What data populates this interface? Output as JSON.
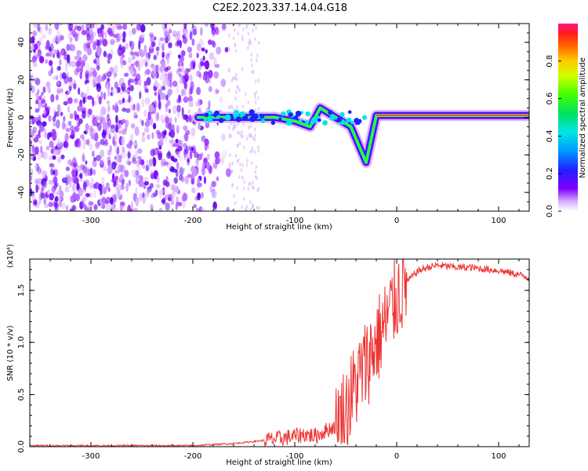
{
  "title": "C2E2.2023.337.14.04.G18",
  "chart_data": [
    {
      "type": "heatmap",
      "id": "spectrogram",
      "xlabel": "Height of straight line (km)",
      "ylabel": "Frequency (Hz)",
      "xlim": [
        -360,
        130
      ],
      "ylim": [
        -50,
        50
      ],
      "xticks": [
        -300,
        -200,
        -100,
        0,
        100
      ],
      "yticks": [
        -40,
        -20,
        0,
        20,
        40
      ],
      "colorbar": {
        "label": "Normalized spectral amplitude",
        "range": [
          0,
          1
        ],
        "ticks": [
          "0.0",
          "0.2",
          "0.4",
          "0.6",
          "0.8"
        ],
        "tick_values": [
          0.0,
          0.2,
          0.4,
          0.6,
          0.8
        ]
      },
      "features": [
        {
          "name": "noise-region",
          "x_range": [
            -360,
            -165
          ],
          "freq_range": [
            -50,
            50
          ]
        },
        {
          "name": "main-trace",
          "points": [
            [
              -195,
              0
            ],
            [
              -180,
              0
            ],
            [
              -150,
              0
            ],
            [
              -120,
              0
            ],
            [
              -100,
              -2
            ],
            [
              -85,
              -5
            ],
            [
              -75,
              5
            ],
            [
              -60,
              0
            ],
            [
              -45,
              -5
            ],
            [
              -30,
              -24
            ],
            [
              -20,
              1
            ],
            [
              0,
              1
            ],
            [
              50,
              1
            ],
            [
              130,
              1
            ]
          ]
        }
      ]
    },
    {
      "type": "line",
      "id": "snr",
      "xlabel": "Height of straight line (km)",
      "ylabel": "SNR (10 * v/v)",
      "scale_label": "(x10⁴)",
      "xlim": [
        -360,
        130
      ],
      "ylim": [
        0,
        1.8
      ],
      "xticks": [
        -300,
        -200,
        -100,
        0,
        100
      ],
      "yticks": [
        "0.0",
        "0.5",
        "1.0",
        "1.5"
      ],
      "ytick_values": [
        0.0,
        0.5,
        1.0,
        1.5
      ],
      "series": [
        {
          "name": "SNR",
          "color": "#ee3333",
          "x": [
            -360,
            -300,
            -250,
            -200,
            -180,
            -160,
            -140,
            -120,
            -100,
            -90,
            -80,
            -70,
            -60,
            -50,
            -40,
            -30,
            -20,
            -10,
            0,
            10,
            20,
            30,
            40,
            50,
            60,
            70,
            80,
            90,
            100,
            110,
            120,
            130
          ],
          "y": [
            0.01,
            0.01,
            0.01,
            0.01,
            0.02,
            0.03,
            0.05,
            0.07,
            0.1,
            0.12,
            0.1,
            0.15,
            0.2,
            0.35,
            0.6,
            0.8,
            1.0,
            1.2,
            1.45,
            1.58,
            1.68,
            1.72,
            1.74,
            1.73,
            1.72,
            1.72,
            1.71,
            1.7,
            1.69,
            1.67,
            1.65,
            1.62
          ]
        }
      ]
    }
  ]
}
